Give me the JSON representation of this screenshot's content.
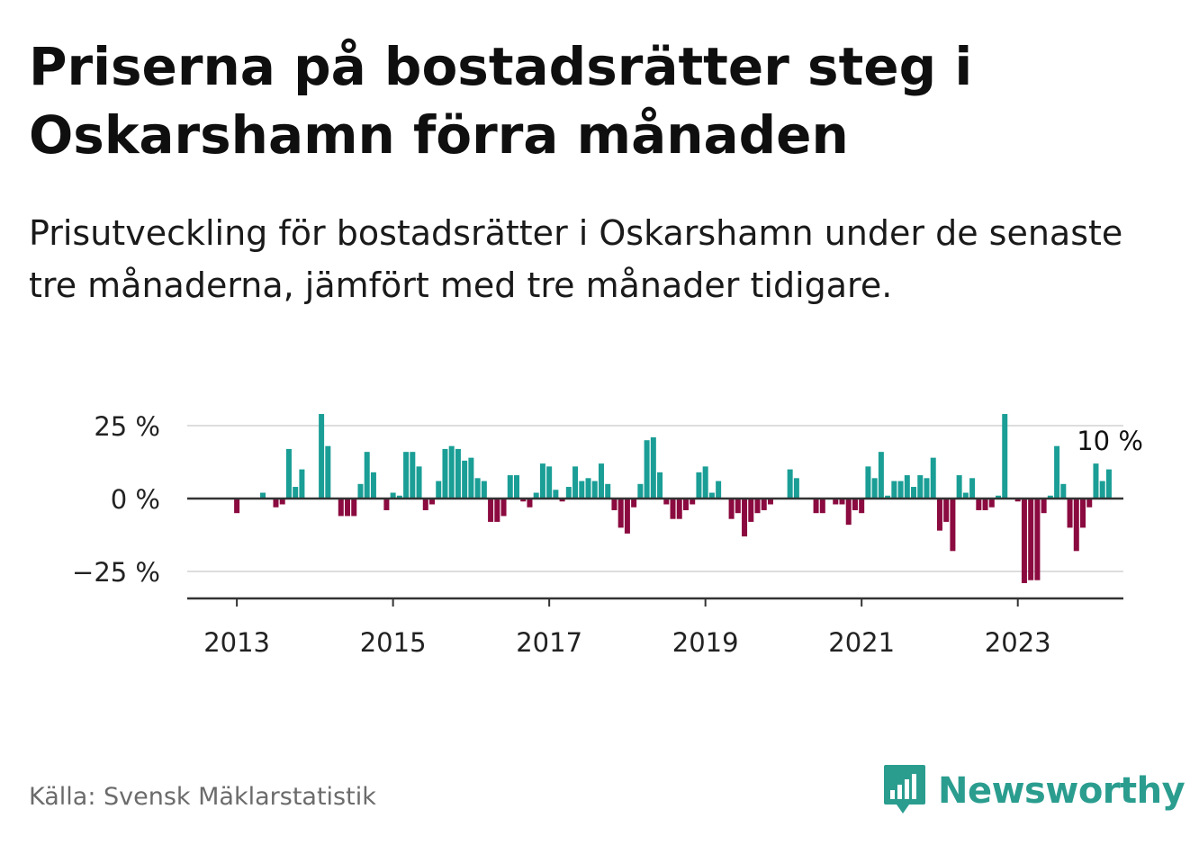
{
  "title": "Priserna på bostadsrätter steg i Oskarshamn förra månaden",
  "subtitle": "Prisutveckling för bostadsrätter i Oskarshamn under de senaste tre månaderna, jämfört med tre månader tidigare.",
  "source": "Källa: Svensk Mäklarstatistik",
  "brand": "Newsworthy",
  "colors": {
    "positive": "#1a9e96",
    "negative": "#8b0a3f",
    "grid": "#dddddd",
    "axis": "#333333",
    "brand": "#2a9d8f"
  },
  "chart_data": {
    "type": "bar",
    "unit": "%",
    "x_start": "2012-06",
    "ylim": [
      -35,
      30
    ],
    "yticks": [
      25,
      0,
      -25
    ],
    "ytick_labels": [
      "25 %",
      "0 %",
      "−25 %"
    ],
    "xticks": [
      {
        "label": "2013",
        "index": 7
      },
      {
        "label": "2015",
        "index": 31
      },
      {
        "label": "2017",
        "index": 55
      },
      {
        "label": "2019",
        "index": 79
      },
      {
        "label": "2021",
        "index": 103
      },
      {
        "label": "2023",
        "index": 127
      }
    ],
    "last_value_label": "10 %",
    "values": [
      0,
      0,
      0,
      0,
      0,
      0,
      0,
      -5,
      0,
      0,
      0,
      2,
      0,
      -3,
      -2,
      17,
      4,
      10,
      0,
      0,
      29,
      18,
      0,
      -6,
      -6,
      -6,
      5,
      16,
      9,
      0,
      -4,
      2,
      1,
      16,
      16,
      11,
      -4,
      -2,
      6,
      17,
      18,
      17,
      13,
      14,
      7,
      6,
      -8,
      -8,
      -6,
      8,
      8,
      -1,
      -3,
      2,
      12,
      11,
      3,
      -1,
      4,
      11,
      6,
      7,
      6,
      12,
      5,
      -4,
      -10,
      -12,
      -3,
      5,
      20,
      21,
      9,
      -2,
      -7,
      -7,
      -4,
      -2,
      9,
      11,
      2,
      6,
      0,
      -7,
      -5,
      -13,
      -8,
      -5,
      -4,
      -2,
      0,
      0,
      10,
      7,
      0,
      0,
      -5,
      -5,
      0,
      -2,
      -2,
      -9,
      -4,
      -5,
      11,
      7,
      16,
      1,
      6,
      6,
      8,
      4,
      8,
      7,
      14,
      -11,
      -8,
      -18,
      8,
      2,
      7,
      -4,
      -4,
      -3,
      1,
      29,
      0,
      -1,
      -29,
      -28,
      -28,
      -5,
      1,
      18,
      5,
      -10,
      -18,
      -10,
      -3,
      12,
      6,
      10
    ]
  }
}
